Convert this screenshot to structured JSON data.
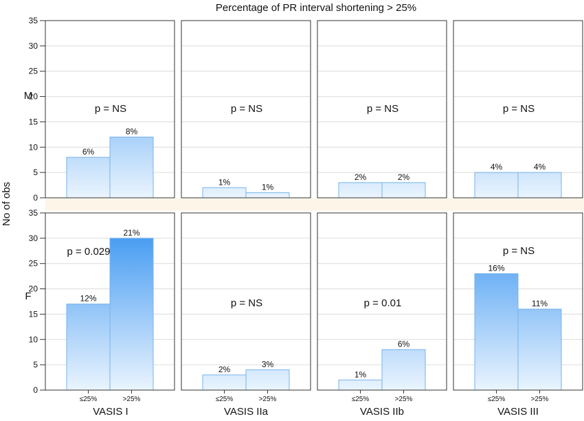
{
  "chart_data": {
    "type": "bar",
    "layout": "faceted-grid",
    "title": "Percentage of PR interval shortening > 25%",
    "ylabel": "No of obs",
    "ylim": [
      0,
      35
    ],
    "yticks": [
      0,
      5,
      10,
      15,
      20,
      25,
      30,
      35
    ],
    "grid": true,
    "categories": [
      "≤25%",
      ">25%"
    ],
    "rows": [
      "M",
      "F"
    ],
    "columns": [
      "VASIS I",
      "VASIS IIa",
      "VASIS IIb",
      "VASIS III"
    ],
    "panels": [
      {
        "row": "M",
        "column": "VASIS I",
        "values": [
          8,
          12
        ],
        "labels": [
          "6%",
          "8%"
        ],
        "pvalue": "p = NS"
      },
      {
        "row": "M",
        "column": "VASIS IIa",
        "values": [
          2,
          1
        ],
        "labels": [
          "1%",
          "1%"
        ],
        "pvalue": "p = NS"
      },
      {
        "row": "M",
        "column": "VASIS IIb",
        "values": [
          3,
          3
        ],
        "labels": [
          "2%",
          "2%"
        ],
        "pvalue": "p = NS"
      },
      {
        "row": "M",
        "column": "VASIS III",
        "values": [
          5,
          5
        ],
        "labels": [
          "4%",
          "4%"
        ],
        "pvalue": "p = NS"
      },
      {
        "row": "F",
        "column": "VASIS I",
        "values": [
          17,
          30
        ],
        "labels": [
          "12%",
          "21%"
        ],
        "pvalue": "p = 0.029"
      },
      {
        "row": "F",
        "column": "VASIS IIa",
        "values": [
          3,
          4
        ],
        "labels": [
          "2%",
          "3%"
        ],
        "pvalue": "p = NS"
      },
      {
        "row": "F",
        "column": "VASIS IIb",
        "values": [
          2,
          8
        ],
        "labels": [
          "1%",
          "6%"
        ],
        "pvalue": "p = 0.01"
      },
      {
        "row": "F",
        "column": "VASIS III",
        "values": [
          23,
          16
        ],
        "labels": [
          "16%",
          "11%"
        ],
        "pvalue": "p = NS"
      }
    ]
  },
  "colors": {
    "bar_light": "#eaf4fe",
    "bar_dark": "#2f8ff0",
    "bar_stroke": "#76b3ec",
    "separator": "#fdf6e8",
    "grid": "#dcdcdc"
  }
}
